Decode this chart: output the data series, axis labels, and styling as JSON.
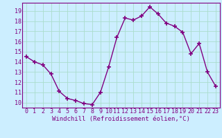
{
  "x": [
    0,
    1,
    2,
    3,
    4,
    5,
    6,
    7,
    8,
    9,
    10,
    11,
    12,
    13,
    14,
    15,
    16,
    17,
    18,
    19,
    20,
    21,
    22,
    23
  ],
  "y": [
    14.5,
    14.0,
    13.7,
    12.8,
    11.1,
    10.4,
    10.2,
    9.9,
    9.8,
    11.0,
    13.5,
    16.4,
    18.3,
    18.1,
    18.5,
    19.4,
    18.7,
    17.8,
    17.5,
    16.9,
    14.8,
    15.8,
    13.0,
    11.6
  ],
  "xlabel": "Windchill (Refroidissement éolien,°C)",
  "ylim": [
    9.5,
    19.8
  ],
  "xlim": [
    -0.5,
    23.5
  ],
  "yticks": [
    10,
    11,
    12,
    13,
    14,
    15,
    16,
    17,
    18,
    19
  ],
  "xticks": [
    0,
    1,
    2,
    3,
    4,
    5,
    6,
    7,
    8,
    9,
    10,
    11,
    12,
    13,
    14,
    15,
    16,
    17,
    18,
    19,
    20,
    21,
    22,
    23
  ],
  "line_color": "#800080",
  "marker": "+",
  "marker_size": 4,
  "marker_linewidth": 1.2,
  "bg_color": "#cceeff",
  "grid_color": "#aaddcc",
  "tick_label_color": "#800080",
  "xlabel_color": "#800080",
  "xlabel_fontsize": 6.5,
  "tick_fontsize": 6,
  "line_width": 1.0
}
